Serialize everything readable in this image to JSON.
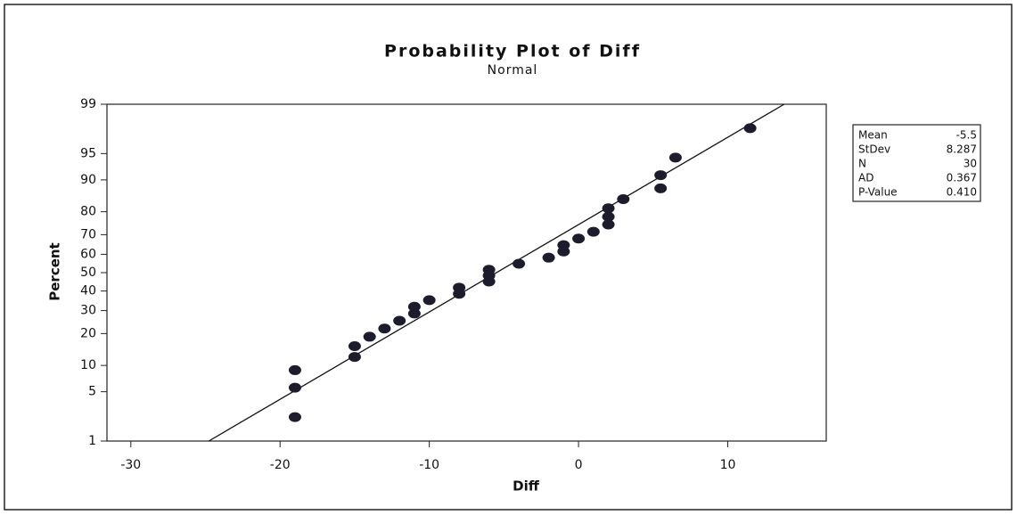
{
  "chart_data": {
    "type": "probability",
    "title": "Probability Plot of Diff",
    "subtitle": "Normal",
    "xlabel": "Diff",
    "ylabel": "Percent",
    "yscale": "normal",
    "color": "#1c1c2c",
    "line_color": "#111111",
    "x": [
      -19,
      -19,
      -19,
      -15,
      -15,
      -14,
      -13,
      -12,
      -11,
      -11,
      -10,
      -8,
      -8,
      -6,
      -6,
      -6,
      -4,
      -2,
      -1,
      -1,
      0,
      1,
      2,
      2,
      2,
      3,
      5.5,
      5.5,
      6.5,
      11.5
    ],
    "values": [
      2.3,
      5.6,
      8.9,
      12.2,
      15.5,
      18.8,
      22.0,
      25.3,
      28.6,
      31.9,
      35.2,
      38.5,
      41.8,
      45.1,
      48.4,
      51.6,
      54.9,
      58.2,
      61.5,
      64.8,
      68.1,
      71.4,
      74.7,
      78.0,
      81.3,
      84.5,
      87.8,
      91.1,
      94.4,
      97.7
    ],
    "xlim": [
      -31.6,
      16.6
    ],
    "xticks": [
      -30,
      -20,
      -10,
      0,
      10
    ],
    "ylim": [
      1,
      99
    ],
    "yticks": [
      1,
      5,
      10,
      20,
      30,
      40,
      50,
      60,
      70,
      80,
      90,
      95,
      99
    ],
    "stats": {
      "rows": [
        [
          "Mean",
          "-5.5"
        ],
        [
          "StDev",
          "8.287"
        ],
        [
          "N",
          "30"
        ],
        [
          "AD",
          "0.367"
        ],
        [
          "P-Value",
          "0.410"
        ]
      ]
    }
  }
}
